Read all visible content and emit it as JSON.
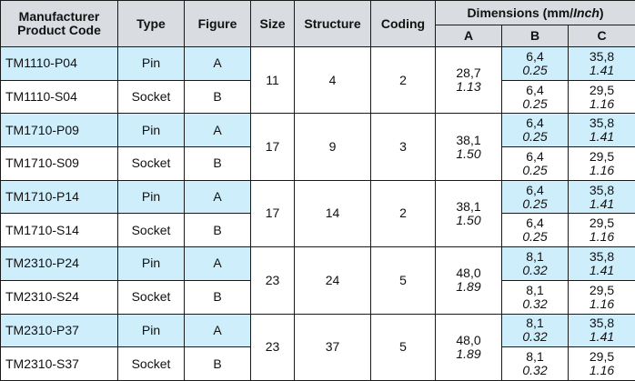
{
  "headers": {
    "code_line1": "Manufacturer",
    "code_line2": "Product Code",
    "type": "Type",
    "figure": "Figure",
    "size": "Size",
    "structure": "Structure",
    "coding": "Coding",
    "dimensions_prefix": "Dimensions (mm/",
    "dimensions_inch": "Inch",
    "dimensions_suffix": ")",
    "a": "A",
    "b": "B",
    "c": "C"
  },
  "groups": [
    {
      "size": "11",
      "structure": "4",
      "coding": "2",
      "a_mm": "28,7",
      "a_in": "1.13",
      "rows": [
        {
          "code": "TM1110-P04",
          "type": "Pin",
          "figure": "A",
          "b_mm": "6,4",
          "b_in": "0.25",
          "c_mm": "35,8",
          "c_in": "1.41"
        },
        {
          "code": "TM1110-S04",
          "type": "Socket",
          "figure": "B",
          "b_mm": "6,4",
          "b_in": "0.25",
          "c_mm": "29,5",
          "c_in": "1.16"
        }
      ]
    },
    {
      "size": "17",
      "structure": "9",
      "coding": "3",
      "a_mm": "38,1",
      "a_in": "1.50",
      "rows": [
        {
          "code": "TM1710-P09",
          "type": "Pin",
          "figure": "A",
          "b_mm": "6,4",
          "b_in": "0.25",
          "c_mm": "35,8",
          "c_in": "1.41"
        },
        {
          "code": "TM1710-S09",
          "type": "Socket",
          "figure": "B",
          "b_mm": "6,4",
          "b_in": "0.25",
          "c_mm": "29,5",
          "c_in": "1.16"
        }
      ]
    },
    {
      "size": "17",
      "structure": "14",
      "coding": "2",
      "a_mm": "38,1",
      "a_in": "1.50",
      "rows": [
        {
          "code": "TM1710-P14",
          "type": "Pin",
          "figure": "A",
          "b_mm": "6,4",
          "b_in": "0.25",
          "c_mm": "35,8",
          "c_in": "1.41"
        },
        {
          "code": "TM1710-S14",
          "type": "Socket",
          "figure": "B",
          "b_mm": "6,4",
          "b_in": "0.25",
          "c_mm": "29,5",
          "c_in": "1.16"
        }
      ]
    },
    {
      "size": "23",
      "structure": "24",
      "coding": "5",
      "a_mm": "48,0",
      "a_in": "1.89",
      "rows": [
        {
          "code": "TM2310-P24",
          "type": "Pin",
          "figure": "A",
          "b_mm": "8,1",
          "b_in": "0.32",
          "c_mm": "35,8",
          "c_in": "1.41"
        },
        {
          "code": "TM2310-S24",
          "type": "Socket",
          "figure": "B",
          "b_mm": "8,1",
          "b_in": "0.32",
          "c_mm": "29,5",
          "c_in": "1.16"
        }
      ]
    },
    {
      "size": "23",
      "structure": "37",
      "coding": "5",
      "a_mm": "48,0",
      "a_in": "1.89",
      "rows": [
        {
          "code": "TM2310-P37",
          "type": "Pin",
          "figure": "A",
          "b_mm": "8,1",
          "b_in": "0.32",
          "c_mm": "35,8",
          "c_in": "1.41"
        },
        {
          "code": "TM2310-S37",
          "type": "Socket",
          "figure": "B",
          "b_mm": "8,1",
          "b_in": "0.32",
          "c_mm": "29,5",
          "c_in": "1.16"
        }
      ]
    }
  ]
}
